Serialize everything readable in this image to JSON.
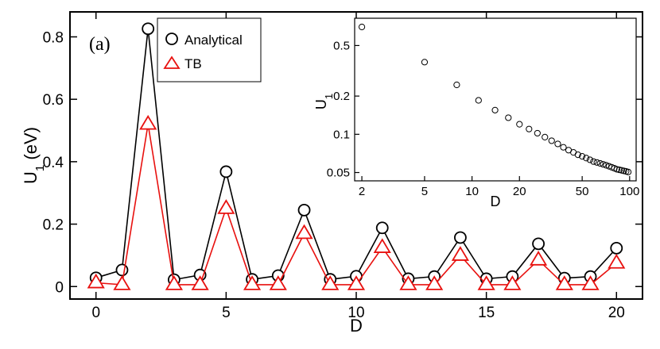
{
  "chart_data": [
    {
      "type": "line",
      "panel_label": "(a)",
      "xlabel": "D",
      "ylabel_main": "U",
      "ylabel_sub": "1",
      "ylabel_unit": " (eV)",
      "xlim": [
        -1,
        21
      ],
      "ylim": [
        -0.04,
        0.88
      ],
      "xticks": [
        0,
        5,
        10,
        15,
        20
      ],
      "yticks": [
        0,
        0.2,
        0.4,
        0.6,
        0.8
      ],
      "xtick_labels": [
        "0",
        "5",
        "10",
        "15",
        "20"
      ],
      "ytick_labels": [
        "0",
        "0.2",
        "0.4",
        "0.6",
        "0.8"
      ],
      "grid": false,
      "legend_position": "top-left",
      "x": [
        0,
        1,
        2,
        3,
        4,
        5,
        6,
        7,
        8,
        9,
        10,
        11,
        12,
        13,
        14,
        15,
        16,
        17,
        18,
        19,
        20
      ],
      "series": [
        {
          "name": "Analytical",
          "marker": "circle",
          "color": "#000000",
          "values": [
            0.028,
            0.053,
            0.826,
            0.022,
            0.037,
            0.368,
            0.023,
            0.035,
            0.245,
            0.023,
            0.033,
            0.188,
            0.025,
            0.032,
            0.157,
            0.025,
            0.032,
            0.137,
            0.027,
            0.032,
            0.123
          ]
        },
        {
          "name": "TB",
          "marker": "triangle",
          "color": "#e8110f",
          "values": [
            0.012,
            0.006,
            0.52,
            0.006,
            0.006,
            0.25,
            0.006,
            0.006,
            0.17,
            0.006,
            0.006,
            0.125,
            0.006,
            0.006,
            0.1,
            0.006,
            0.006,
            0.085,
            0.006,
            0.006,
            0.075
          ]
        }
      ]
    },
    {
      "type": "scatter",
      "xlabel": "D",
      "ylabel_main": "U",
      "ylabel_sub": "1",
      "xscale": "log",
      "yscale": "log",
      "xlim": [
        1.8,
        110
      ],
      "ylim": [
        0.043,
        0.82
      ],
      "xticks": [
        2,
        5,
        10,
        20,
        50,
        100
      ],
      "yticks": [
        0.05,
        0.1,
        0.2,
        0.5
      ],
      "xtick_labels": [
        "2",
        "5",
        "10",
        "20",
        "50",
        "100"
      ],
      "ytick_labels": [
        "0.05",
        "0.1",
        "0.2",
        "0.5"
      ],
      "grid": false,
      "marker": "circle",
      "color": "#000000",
      "x": [
        2,
        5,
        8,
        11,
        14,
        17,
        20,
        23,
        26,
        29,
        32,
        35,
        38,
        41,
        44,
        47,
        50,
        53,
        56,
        59,
        62,
        65,
        68,
        71,
        74,
        77,
        80,
        83,
        86,
        89,
        92,
        95,
        98
      ],
      "y": [
        0.7,
        0.37,
        0.245,
        0.185,
        0.155,
        0.135,
        0.12,
        0.11,
        0.102,
        0.095,
        0.089,
        0.084,
        0.079,
        0.075,
        0.072,
        0.069,
        0.067,
        0.065,
        0.063,
        0.061,
        0.06,
        0.059,
        0.058,
        0.057,
        0.056,
        0.055,
        0.054,
        0.053,
        0.0525,
        0.052,
        0.0515,
        0.051,
        0.0505
      ]
    }
  ]
}
